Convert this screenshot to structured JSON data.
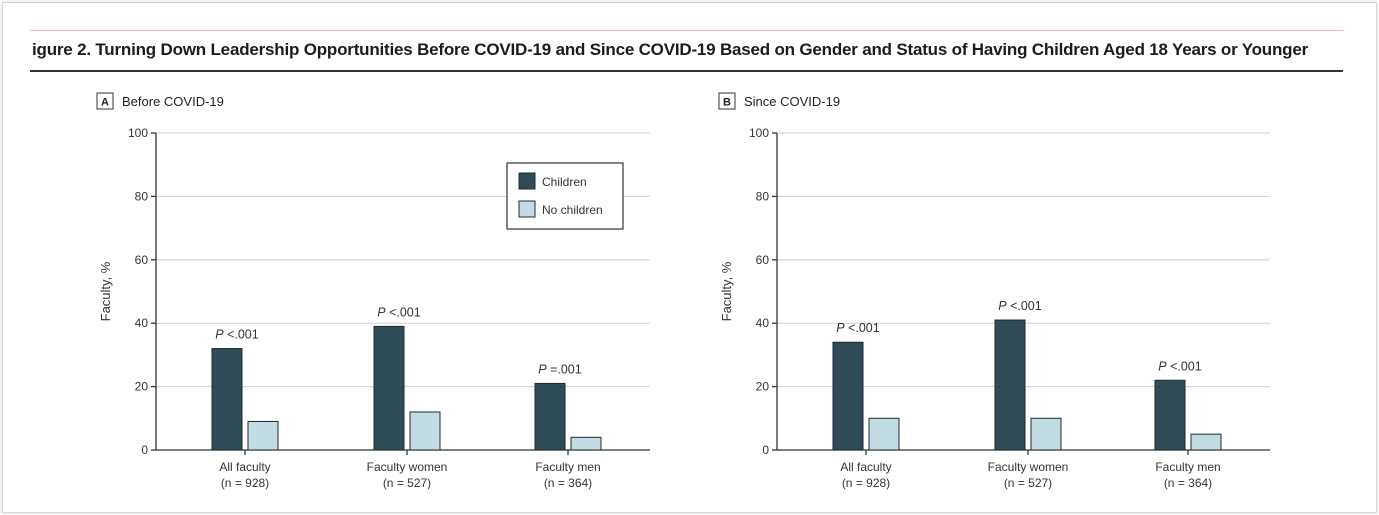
{
  "figure": {
    "title": "igure 2. Turning Down Leadership Opportunities Before COVID-19 and Since COVID-19 Based on Gender and Status of Having Children Aged 18 Years or Younger"
  },
  "colors": {
    "children": "#2f4b55",
    "no_children": "#c3dbe3"
  },
  "legend": {
    "items": [
      "Children",
      "No children"
    ]
  },
  "chart_data": [
    {
      "type": "bar",
      "panel_letter": "A",
      "title": "Before COVID-19",
      "ylabel": "Faculty, %",
      "ylim": [
        0,
        100
      ],
      "yticks": [
        0,
        20,
        40,
        60,
        80,
        100
      ],
      "grid": true,
      "legend": "top-right",
      "categories": [
        "All faculty",
        "Faculty women",
        "Faculty men"
      ],
      "category_n": [
        "(n = 928)",
        "(n = 527)",
        "(n = 364)"
      ],
      "series": [
        {
          "name": "Children",
          "values": [
            32,
            39,
            21
          ]
        },
        {
          "name": "No children",
          "values": [
            9,
            12,
            4
          ]
        }
      ],
      "p_values": [
        {
          "italic": "P",
          "text": " <.001"
        },
        {
          "italic": "P",
          "text": " <.001"
        },
        {
          "italic": "P",
          "text": " =.001"
        }
      ]
    },
    {
      "type": "bar",
      "panel_letter": "B",
      "title": "Since COVID-19",
      "ylabel": "Faculty, %",
      "ylim": [
        0,
        100
      ],
      "yticks": [
        0,
        20,
        40,
        60,
        80,
        100
      ],
      "grid": true,
      "categories": [
        "All faculty",
        "Faculty women",
        "Faculty men"
      ],
      "category_n": [
        "(n = 928)",
        "(n = 527)",
        "(n = 364)"
      ],
      "series": [
        {
          "name": "Children",
          "values": [
            34,
            41,
            22
          ]
        },
        {
          "name": "No children",
          "values": [
            10,
            10,
            5
          ]
        }
      ],
      "p_values": [
        {
          "italic": "P",
          "text": " <.001"
        },
        {
          "italic": "P",
          "text": " <.001"
        },
        {
          "italic": "P",
          "text": " <.001"
        }
      ]
    }
  ]
}
